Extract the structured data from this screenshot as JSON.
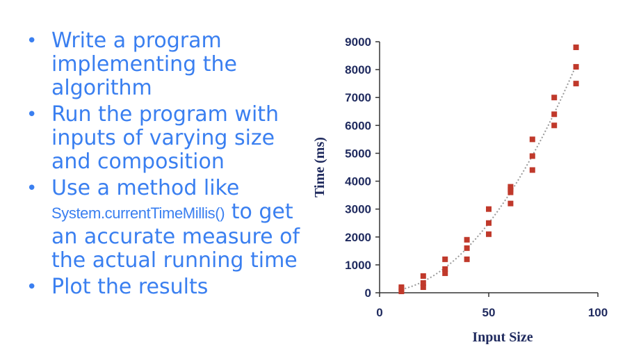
{
  "bullets": [
    {
      "text": "Write a program implementing the algorithm"
    },
    {
      "text": "Run the program with inputs of varying size and composition"
    },
    {
      "pre": "Use a method like",
      "code": "System.currentTimeMillis()",
      "post": "to get an accurate measure of the actual running time"
    },
    {
      "text": "Plot the results"
    }
  ],
  "colors": {
    "bullet_text": "#3a7ff0",
    "points": "#c0392b",
    "trend": "#999999",
    "axis_text": "#1f2a5e"
  },
  "chart_data": {
    "type": "scatter",
    "xlabel": "Input Size",
    "ylabel": "Time (ms)",
    "xlim": [
      0,
      100
    ],
    "ylim": [
      0,
      9000
    ],
    "xticks": [
      "0",
      "50",
      "100"
    ],
    "yticks": [
      "0",
      "1000",
      "2000",
      "3000",
      "4000",
      "5000",
      "6000",
      "7000",
      "8000",
      "9000"
    ],
    "points": [
      [
        10,
        50
      ],
      [
        10,
        150
      ],
      [
        10,
        200
      ],
      [
        20,
        200
      ],
      [
        20,
        350
      ],
      [
        20,
        600
      ],
      [
        30,
        700
      ],
      [
        30,
        850
      ],
      [
        30,
        1200
      ],
      [
        40,
        1200
      ],
      [
        40,
        1600
      ],
      [
        40,
        1900
      ],
      [
        50,
        2100
      ],
      [
        50,
        2500
      ],
      [
        50,
        3000
      ],
      [
        60,
        3200
      ],
      [
        60,
        3600
      ],
      [
        60,
        3700
      ],
      [
        60,
        3800
      ],
      [
        70,
        4400
      ],
      [
        70,
        4900
      ],
      [
        70,
        5500
      ],
      [
        80,
        6000
      ],
      [
        80,
        6400
      ],
      [
        80,
        7000
      ],
      [
        90,
        7500
      ],
      [
        90,
        8100
      ],
      [
        90,
        8800
      ]
    ],
    "trendline": "dotted quadratic",
    "grid": false
  }
}
